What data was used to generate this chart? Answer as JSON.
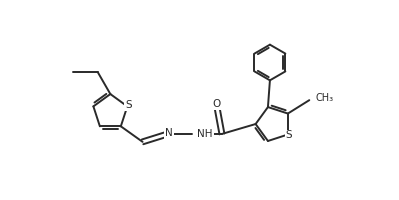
{
  "bg_color": "#ffffff",
  "line_color": "#2a2a2a",
  "line_width": 1.4,
  "figsize": [
    3.99,
    2.0
  ],
  "dpi": 100,
  "xlim": [
    0.0,
    4.0
  ],
  "ylim": [
    0.3,
    2.1
  ]
}
